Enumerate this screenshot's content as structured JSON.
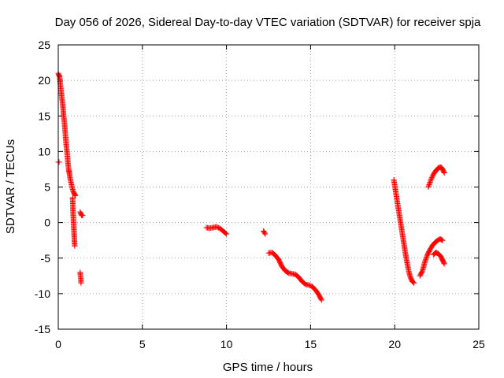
{
  "chart_data": {
    "type": "scatter",
    "title": "Day 056 of 2026, Sidereal Day-to-day VTEC variation (SDTVAR) for receiver spja",
    "xlabel": "GPS time / hours",
    "ylabel": "SDTVAR / TECUs",
    "xlim": [
      0,
      25
    ],
    "ylim": [
      -15,
      25
    ],
    "xticks": [
      0,
      5,
      10,
      15,
      20,
      25
    ],
    "yticks": [
      -15,
      -10,
      -5,
      0,
      5,
      10,
      15,
      20,
      25
    ],
    "grid": true,
    "marker": "+",
    "marker_color": "#ff0000",
    "series": [
      {
        "name": "SDTVAR",
        "segments": [
          [
            [
              0.0,
              8.5
            ],
            [
              0.05,
              8.5
            ]
          ],
          [
            [
              0.0,
              21
            ],
            [
              0.08,
              20.5
            ],
            [
              0.12,
              19.5
            ],
            [
              0.17,
              18.5
            ],
            [
              0.22,
              17.5
            ],
            [
              0.27,
              16.5
            ],
            [
              0.32,
              15
            ],
            [
              0.37,
              14
            ],
            [
              0.42,
              12.5
            ],
            [
              0.47,
              11
            ],
            [
              0.52,
              10
            ],
            [
              0.57,
              8.5
            ],
            [
              0.62,
              7.5
            ],
            [
              0.67,
              6.8
            ],
            [
              0.72,
              6
            ],
            [
              0.77,
              5.5
            ],
            [
              0.82,
              5
            ],
            [
              0.87,
              4.5
            ],
            [
              0.92,
              4.2
            ],
            [
              0.97,
              4
            ],
            [
              1.02,
              3.8
            ]
          ],
          [
            [
              0.85,
              3.5
            ],
            [
              0.87,
              2.5
            ],
            [
              0.88,
              1.5
            ],
            [
              0.9,
              0.5
            ],
            [
              0.92,
              -0.5
            ],
            [
              0.94,
              -1.5
            ],
            [
              0.96,
              -2.5
            ],
            [
              0.98,
              -3.3
            ]
          ],
          [
            [
              1.3,
              1.5
            ],
            [
              1.35,
              1.2
            ],
            [
              1.4,
              1
            ],
            [
              1.45,
              1
            ]
          ],
          [
            [
              1.3,
              -7
            ],
            [
              1.32,
              -7.5
            ],
            [
              1.35,
              -8
            ],
            [
              1.35,
              -8.5
            ]
          ],
          [
            [
              8.8,
              -0.7
            ],
            [
              9.0,
              -0.8
            ],
            [
              9.2,
              -0.7
            ],
            [
              9.4,
              -0.6
            ],
            [
              9.6,
              -0.8
            ],
            [
              9.8,
              -1.2
            ],
            [
              10.0,
              -1.6
            ]
          ],
          [
            [
              12.2,
              -1.2
            ],
            [
              12.3,
              -1.6
            ]
          ],
          [
            [
              12.5,
              -4.3
            ],
            [
              12.7,
              -4.2
            ],
            [
              12.9,
              -4.6
            ],
            [
              13.1,
              -5.2
            ],
            [
              13.3,
              -6.2
            ],
            [
              13.5,
              -6.8
            ],
            [
              13.7,
              -7.1
            ],
            [
              13.9,
              -7.2
            ],
            [
              14.1,
              -7.3
            ],
            [
              14.3,
              -7.7
            ],
            [
              14.5,
              -8.3
            ],
            [
              14.7,
              -8.7
            ],
            [
              14.9,
              -8.8
            ],
            [
              15.1,
              -9.0
            ],
            [
              15.3,
              -9.5
            ],
            [
              15.5,
              -10.2
            ],
            [
              15.65,
              -10.9
            ]
          ],
          [
            [
              19.95,
              6.0
            ],
            [
              20.05,
              4.5
            ],
            [
              20.15,
              3.0
            ],
            [
              20.25,
              1.5
            ],
            [
              20.35,
              0.0
            ],
            [
              20.45,
              -1.5
            ],
            [
              20.55,
              -3.0
            ],
            [
              20.65,
              -4.5
            ],
            [
              20.75,
              -5.8
            ],
            [
              20.85,
              -7.0
            ],
            [
              20.95,
              -7.8
            ],
            [
              21.05,
              -8.3
            ],
            [
              21.15,
              -8.5
            ]
          ],
          [
            [
              21.5,
              -7.5
            ],
            [
              21.65,
              -6.8
            ],
            [
              21.8,
              -5.5
            ],
            [
              21.95,
              -4.5
            ],
            [
              22.1,
              -3.8
            ],
            [
              22.25,
              -3.2
            ],
            [
              22.4,
              -2.8
            ],
            [
              22.55,
              -2.5
            ],
            [
              22.7,
              -2.3
            ],
            [
              22.85,
              -2.5
            ]
          ],
          [
            [
              22.0,
              5.0
            ],
            [
              22.15,
              6.0
            ],
            [
              22.3,
              6.8
            ],
            [
              22.45,
              7.3
            ],
            [
              22.6,
              7.7
            ],
            [
              22.75,
              7.8
            ],
            [
              22.85,
              7.5
            ],
            [
              22.95,
              7.0
            ]
          ],
          [
            [
              22.3,
              -4.5
            ],
            [
              22.45,
              -4.2
            ],
            [
              22.6,
              -4.4
            ],
            [
              22.75,
              -4.8
            ],
            [
              22.85,
              -5.3
            ],
            [
              22.95,
              -5.8
            ]
          ]
        ]
      }
    ]
  },
  "colors": {
    "marker": "#ff0000",
    "grid": "#a0a0a0",
    "axes": "#000000",
    "background": "#ffffff"
  }
}
